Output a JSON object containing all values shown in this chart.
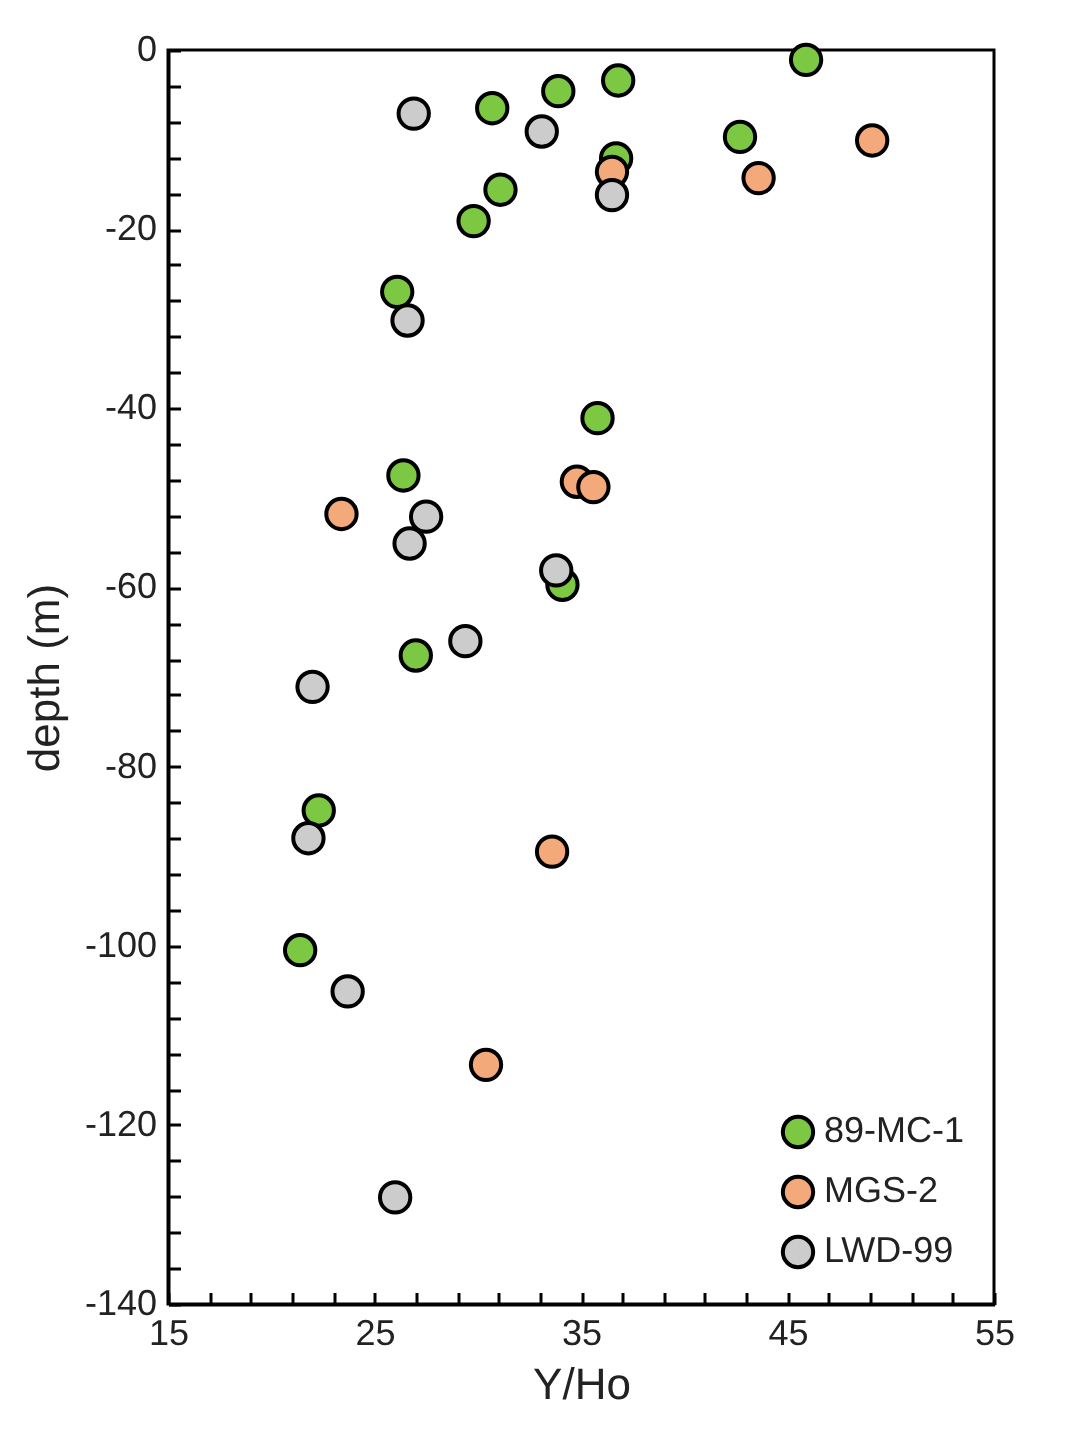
{
  "chart_data": {
    "type": "scatter",
    "xlabel": "Y/Ho",
    "ylabel": "depth (m)",
    "xlim": [
      15,
      55
    ],
    "ylim": [
      -140,
      0
    ],
    "xticks": [
      15,
      {
        "value": 17,
        "label": null
      },
      {
        "value": 19,
        "label": null
      },
      {
        "value": 21,
        "label": null
      },
      {
        "value": 23,
        "label": null
      },
      25,
      {
        "value": 27,
        "label": null
      },
      {
        "value": 29,
        "label": null
      },
      {
        "value": 31,
        "label": null
      },
      {
        "value": 33,
        "label": null
      },
      35,
      {
        "value": 37,
        "label": null
      },
      {
        "value": 39,
        "label": null
      },
      {
        "value": 41,
        "label": null
      },
      {
        "value": 43,
        "label": null
      },
      45,
      {
        "value": 47,
        "label": null
      },
      {
        "value": 49,
        "label": null
      },
      {
        "value": 51,
        "label": null
      },
      {
        "value": 53,
        "label": null
      },
      55
    ],
    "yticks": [
      -140,
      {
        "value": -136,
        "label": null
      },
      {
        "value": -132,
        "label": null
      },
      {
        "value": -128,
        "label": null
      },
      {
        "value": -124,
        "label": null
      },
      -120,
      {
        "value": -116,
        "label": null
      },
      {
        "value": -112,
        "label": null
      },
      {
        "value": -108,
        "label": null
      },
      {
        "value": -104,
        "label": null
      },
      -100,
      {
        "value": -96,
        "label": null
      },
      {
        "value": -92,
        "label": null
      },
      {
        "value": -88,
        "label": null
      },
      {
        "value": -84,
        "label": null
      },
      -80,
      {
        "value": -76,
        "label": null
      },
      {
        "value": -72,
        "label": null
      },
      {
        "value": -68,
        "label": null
      },
      {
        "value": -64,
        "label": null
      },
      -60,
      {
        "value": -56,
        "label": null
      },
      {
        "value": -52,
        "label": null
      },
      {
        "value": -48,
        "label": null
      },
      {
        "value": -44,
        "label": null
      },
      -40,
      {
        "value": -36,
        "label": null
      },
      {
        "value": -32,
        "label": null
      },
      {
        "value": -28,
        "label": null
      },
      {
        "value": -24,
        "label": null
      },
      -20,
      {
        "value": -16,
        "label": null
      },
      {
        "value": -12,
        "label": null
      },
      {
        "value": -8,
        "label": null
      },
      {
        "value": -4,
        "label": null
      },
      0
    ],
    "grid": false,
    "legend": "bottom right",
    "marker": "circle",
    "series": [
      {
        "name": "89-MC-1",
        "color": "#7dc843",
        "x": [
          45.9,
          36.8,
          33.9,
          30.7,
          36.7,
          42.7,
          31.1,
          29.8,
          26.1,
          35.8,
          26.4,
          34.1,
          27.0,
          22.3,
          21.4
        ],
        "values": [
          -1.1,
          -3.4,
          -4.6,
          -6.5,
          -12.1,
          -9.7,
          -15.6,
          -19.1,
          -27.0,
          -41.1,
          -47.5,
          -59.7,
          -67.6,
          -84.9,
          -100.5
        ]
      },
      {
        "name": "MGS-2",
        "color": "#f4a97a",
        "x": [
          49.1,
          43.6,
          36.5,
          23.4,
          34.8,
          35.6,
          33.6,
          30.4
        ],
        "values": [
          -10.1,
          -14.3,
          -13.6,
          -51.8,
          -48.2,
          -48.8,
          -89.5,
          -113.3
        ]
      },
      {
        "name": "LWD-99",
        "color": "#cccccc",
        "x": [
          26.9,
          33.1,
          36.5,
          26.6,
          27.5,
          26.7,
          33.8,
          29.4,
          22.0,
          21.8,
          23.7,
          26.0
        ],
        "values": [
          -7.1,
          -9.1,
          -16.2,
          -30.2,
          -52.1,
          -55.1,
          -58.1,
          -66.0,
          -71.1,
          -88.0,
          -105.1,
          -128.1
        ]
      }
    ]
  }
}
